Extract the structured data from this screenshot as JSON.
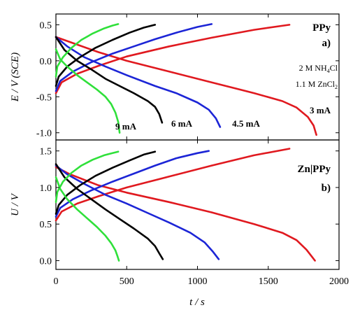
{
  "chart_data": [
    {
      "type": "line",
      "panel_label": "a)",
      "title": "PPy",
      "ylabel": "E / V (SCE)",
      "xlabel": "",
      "xlim": [
        0,
        2000
      ],
      "ylim": [
        -1.1,
        0.65
      ],
      "xticks": [
        0,
        500,
        1000,
        1500,
        2000
      ],
      "yticks": [
        -1.0,
        -0.5,
        0.0,
        0.5
      ],
      "ytick_labels": [
        "-1.0",
        "-0.5",
        "0.0",
        "0.5"
      ],
      "grid": false,
      "annotations": [
        "2 M NH4Cl",
        "1.1 M ZnCl2"
      ],
      "series": [
        {
          "name": "3 mA",
          "color": "#e0191f",
          "charge": {
            "x": [
              0,
              40,
              150,
              300,
              500,
              800,
              1100,
              1400,
              1650
            ],
            "y": [
              -0.45,
              -0.3,
              -0.18,
              -0.07,
              0.06,
              0.2,
              0.32,
              0.43,
              0.5
            ]
          },
          "discharge": {
            "x": [
              0,
              100,
              300,
              500,
              800,
              1100,
              1400,
              1600,
              1700,
              1780,
              1820,
              1840
            ],
            "y": [
              0.33,
              0.26,
              0.12,
              0.0,
              -0.15,
              -0.3,
              -0.45,
              -0.56,
              -0.65,
              -0.78,
              -0.9,
              -1.03
            ]
          }
        },
        {
          "name": "4.5 mA",
          "color": "#1c25d6",
          "charge": {
            "x": [
              0,
              30,
              120,
              250,
              400,
              550,
              700,
              850,
              1000,
              1100
            ],
            "y": [
              -0.42,
              -0.28,
              -0.15,
              -0.02,
              0.1,
              0.2,
              0.3,
              0.39,
              0.47,
              0.51
            ]
          },
          "discharge": {
            "x": [
              0,
              80,
              200,
              350,
              500,
              700,
              850,
              1000,
              1080,
              1130,
              1160
            ],
            "y": [
              0.33,
              0.2,
              0.05,
              -0.08,
              -0.2,
              -0.35,
              -0.45,
              -0.58,
              -0.68,
              -0.8,
              -0.92
            ]
          }
        },
        {
          "name": "6 mA",
          "color": "#000000",
          "charge": {
            "x": [
              0,
              20,
              80,
              170,
              280,
              400,
              520,
              620,
              700
            ],
            "y": [
              -0.35,
              -0.22,
              -0.08,
              0.05,
              0.18,
              0.29,
              0.39,
              0.46,
              0.5
            ]
          },
          "discharge": {
            "x": [
              0,
              60,
              150,
              250,
              350,
              450,
              550,
              650,
              700,
              730,
              750
            ],
            "y": [
              0.33,
              0.15,
              0.0,
              -0.12,
              -0.25,
              -0.35,
              -0.45,
              -0.56,
              -0.64,
              -0.74,
              -0.86
            ]
          }
        },
        {
          "name": "9 mA",
          "color": "#2fe03a",
          "charge": {
            "x": [
              0,
              10,
              50,
              110,
              180,
              260,
              340,
              400,
              440
            ],
            "y": [
              -0.22,
              -0.08,
              0.05,
              0.18,
              0.29,
              0.38,
              0.45,
              0.49,
              0.51
            ]
          },
          "discharge": {
            "x": [
              0,
              30,
              80,
              150,
              220,
              290,
              350,
              390,
              420,
              440,
              450
            ],
            "y": [
              0.16,
              0.02,
              -0.08,
              -0.2,
              -0.3,
              -0.4,
              -0.5,
              -0.6,
              -0.72,
              -0.85,
              -1.0
            ]
          }
        }
      ],
      "series_labels": [
        "9 mA",
        "6 mA",
        "4.5 mA",
        "3 mA"
      ]
    },
    {
      "type": "line",
      "panel_label": "b)",
      "title": "Zn|PPy",
      "ylabel": "U / V",
      "xlabel": "t / s",
      "xlim": [
        0,
        2000
      ],
      "ylim": [
        -0.12,
        1.65
      ],
      "xticks": [
        0,
        500,
        1000,
        1500,
        2000
      ],
      "xtick_labels": [
        "0",
        "500",
        "1000",
        "1500",
        "2000"
      ],
      "yticks": [
        0.0,
        0.5,
        1.0,
        1.5
      ],
      "ytick_labels": [
        "0.0",
        "0.5",
        "1.0",
        "1.5"
      ],
      "grid": false,
      "series": [
        {
          "name": "3 mA",
          "color": "#e0191f",
          "charge": {
            "x": [
              0,
              40,
              150,
              300,
              500,
              800,
              1100,
              1400,
              1650
            ],
            "y": [
              0.55,
              0.67,
              0.78,
              0.88,
              1.0,
              1.15,
              1.3,
              1.44,
              1.53
            ]
          },
          "discharge": {
            "x": [
              0,
              100,
              300,
              500,
              800,
              1100,
              1400,
              1600,
              1700,
              1770,
              1810,
              1830
            ],
            "y": [
              1.28,
              1.18,
              1.03,
              0.93,
              0.8,
              0.66,
              0.5,
              0.38,
              0.28,
              0.15,
              0.05,
              0.0
            ]
          }
        },
        {
          "name": "4.5 mA",
          "color": "#1c25d6",
          "charge": {
            "x": [
              0,
              30,
              120,
              250,
              400,
              550,
              700,
              850,
              1000,
              1080
            ],
            "y": [
              0.6,
              0.72,
              0.84,
              0.96,
              1.08,
              1.19,
              1.3,
              1.4,
              1.47,
              1.5
            ]
          },
          "discharge": {
            "x": [
              0,
              80,
              200,
              350,
              500,
              650,
              800,
              950,
              1050,
              1110,
              1150
            ],
            "y": [
              1.3,
              1.18,
              1.05,
              0.9,
              0.78,
              0.65,
              0.52,
              0.38,
              0.25,
              0.12,
              0.02
            ]
          }
        },
        {
          "name": "6 mA",
          "color": "#000000",
          "charge": {
            "x": [
              0,
              20,
              80,
              170,
              280,
              400,
              520,
              620,
              700
            ],
            "y": [
              0.64,
              0.76,
              0.9,
              1.03,
              1.16,
              1.27,
              1.37,
              1.45,
              1.49
            ]
          },
          "discharge": {
            "x": [
              0,
              60,
              150,
              250,
              350,
              450,
              550,
              650,
              700,
              730,
              755
            ],
            "y": [
              1.32,
              1.14,
              0.98,
              0.84,
              0.7,
              0.57,
              0.44,
              0.3,
              0.2,
              0.1,
              0.02
            ]
          }
        },
        {
          "name": "9 mA",
          "color": "#2fe03a",
          "charge": {
            "x": [
              0,
              10,
              50,
              110,
              180,
              260,
              340,
              400,
              440
            ],
            "y": [
              0.8,
              0.94,
              1.08,
              1.2,
              1.3,
              1.38,
              1.44,
              1.47,
              1.49
            ]
          },
          "discharge": {
            "x": [
              0,
              30,
              80,
              150,
              220,
              290,
              350,
              390,
              420,
              435,
              445
            ],
            "y": [
              1.14,
              0.98,
              0.84,
              0.7,
              0.58,
              0.46,
              0.34,
              0.24,
              0.14,
              0.06,
              0.0
            ]
          }
        }
      ]
    }
  ]
}
